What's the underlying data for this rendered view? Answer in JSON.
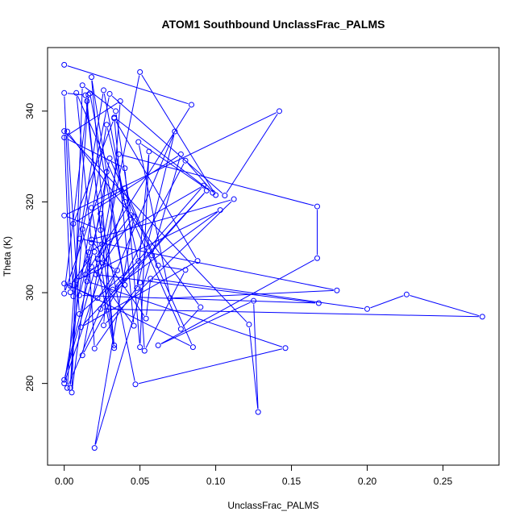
{
  "chart_data": {
    "type": "line",
    "title": "ATOM1 Southbound UnclassFrac_PALMS",
    "xlabel": "UnclassFrac_PALMS",
    "ylabel": "Theta (K)",
    "xlim": [
      -0.011,
      0.287
    ],
    "ylim": [
      262,
      354
    ],
    "xticks": [
      0.0,
      0.05,
      0.1,
      0.15,
      0.2,
      0.25
    ],
    "xtick_labels": [
      "0.00",
      "0.05",
      "0.10",
      "0.15",
      "0.20",
      "0.25"
    ],
    "yticks": [
      280,
      300,
      320,
      340
    ],
    "ytick_labels": [
      "280",
      "300",
      "320",
      "340"
    ],
    "grid": false,
    "marker": "open-circle",
    "color": "#0000ff",
    "series": [
      {
        "points": [
          [
            0.0,
            350.2
          ],
          [
            0.084,
            341.4
          ],
          [
            0.014,
            304.0
          ],
          [
            0.025,
            306.6
          ],
          [
            0.05,
            348.6
          ],
          [
            0.1,
            321.5
          ],
          [
            0.08,
            329.1
          ],
          [
            0.012,
            286.2
          ],
          [
            0.036,
            330.5
          ],
          [
            0.167,
            319.0
          ],
          [
            0.167,
            307.6
          ],
          [
            0.062,
            288.4
          ],
          [
            0.125,
            298.2
          ],
          [
            0.128,
            273.7
          ],
          [
            0.122,
            293.0
          ],
          [
            0.0,
            335.6
          ],
          [
            0.004,
            300.1
          ],
          [
            0.03,
            343.8
          ],
          [
            0.106,
            321.4
          ],
          [
            0.142,
            340.0
          ],
          [
            0.0,
            317.0
          ],
          [
            0.024,
            313.8
          ],
          [
            0.028,
            326.6
          ],
          [
            0.0,
            299.8
          ],
          [
            0.016,
            343.6
          ],
          [
            0.002,
            279.0
          ],
          [
            0.073,
            335.5
          ],
          [
            0.048,
            301.0
          ],
          [
            0.056,
            331.1
          ],
          [
            0.05,
            288.0
          ],
          [
            0.04,
            327.4
          ],
          [
            0.0,
            334.2
          ],
          [
            0.037,
            342.2
          ],
          [
            0.026,
            292.8
          ],
          [
            0.112,
            320.6
          ],
          [
            0.018,
            311.7
          ],
          [
            0.054,
            294.3
          ],
          [
            0.057,
            303.1
          ],
          [
            0.2,
            296.4
          ],
          [
            0.226,
            299.6
          ],
          [
            0.276,
            294.7
          ],
          [
            0.024,
            296.4
          ],
          [
            0.094,
            322.5
          ],
          [
            0.011,
            292.4
          ],
          [
            0.088,
            307.0
          ],
          [
            0.033,
            338.4
          ],
          [
            0.006,
            315.2
          ],
          [
            0.077,
            330.5
          ],
          [
            0.058,
            308.2
          ],
          [
            0.02,
            265.8
          ],
          [
            0.046,
            316.8
          ],
          [
            0.021,
            304.0
          ],
          [
            0.168,
            297.7
          ],
          [
            0.01,
            299.4
          ],
          [
            0.024,
            317.4
          ],
          [
            0.047,
            279.8
          ],
          [
            0.146,
            287.8
          ],
          [
            0.015,
            302.5
          ],
          [
            0.03,
            329.6
          ],
          [
            0.085,
            288.0
          ],
          [
            0.004,
            301.5
          ],
          [
            0.02,
            309.0
          ],
          [
            0.033,
            287.8
          ],
          [
            0.018,
            347.5
          ],
          [
            0.04,
            301.7
          ],
          [
            0.017,
            343.9
          ],
          [
            0.015,
            342.2
          ],
          [
            0.025,
            310.7
          ],
          [
            0.0,
            280.8
          ],
          [
            0.018,
            305.7
          ],
          [
            0.046,
            292.7
          ],
          [
            0.033,
            338.6
          ],
          [
            0.098,
            322.0
          ],
          [
            0.049,
            333.2
          ],
          [
            0.07,
            298.8
          ],
          [
            0.18,
            300.5
          ],
          [
            0.01,
            311.9
          ],
          [
            0.026,
            344.6
          ],
          [
            0.04,
            320.0
          ],
          [
            0.0,
            280.0
          ],
          [
            0.028,
            337.0
          ],
          [
            0.049,
            307.0
          ],
          [
            0.01,
            295.3
          ],
          [
            0.002,
            335.5
          ],
          [
            0.09,
            296.8
          ],
          [
            0.077,
            292.0
          ],
          [
            0.008,
            344.0
          ],
          [
            0.018,
            311.0
          ],
          [
            0.006,
            299.2
          ],
          [
            0.0,
            344.0
          ],
          [
            0.014,
            343.5
          ],
          [
            0.033,
            288.4
          ],
          [
            0.018,
            318.7
          ],
          [
            0.04,
            323.0
          ],
          [
            0.062,
            306.0
          ],
          [
            0.08,
            305.0
          ],
          [
            0.053,
            287.2
          ],
          [
            0.05,
            302.2
          ],
          [
            0.02,
            287.7
          ],
          [
            0.016,
            308.9
          ],
          [
            0.092,
            323.6
          ],
          [
            0.032,
            300.7
          ],
          [
            0.103,
            318.2
          ],
          [
            0.008,
            302.7
          ],
          [
            0.004,
            279.0
          ],
          [
            0.012,
            314.0
          ],
          [
            0.016,
            306.8
          ],
          [
            0.005,
            278.0
          ],
          [
            0.012,
            345.7
          ],
          [
            0.034,
            340.0
          ],
          [
            0.044,
            317.1
          ],
          [
            0.022,
            307.4
          ],
          [
            0.035,
            304.9
          ],
          [
            0.022,
            298.8
          ],
          [
            0.0,
            302.0
          ]
        ]
      }
    ]
  }
}
